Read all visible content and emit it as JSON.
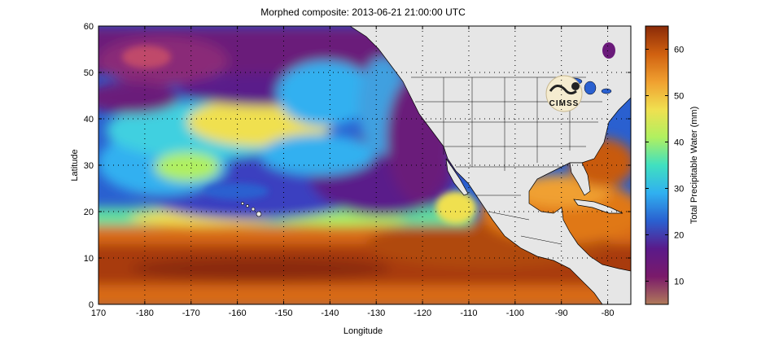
{
  "title": "Morphed composite: 2013-06-21 21:00:00 UTC",
  "map": {
    "xlabel": "Longitude",
    "ylabel": "Latitude",
    "x_ticks": [
      {
        "value": 170,
        "label": "170"
      },
      {
        "value": 180,
        "label": "-180"
      },
      {
        "value": 190,
        "label": "-170"
      },
      {
        "value": 200,
        "label": "-160"
      },
      {
        "value": 210,
        "label": "-150"
      },
      {
        "value": 220,
        "label": "-140"
      },
      {
        "value": 230,
        "label": "-130"
      },
      {
        "value": 240,
        "label": "-120"
      },
      {
        "value": 250,
        "label": "-110"
      },
      {
        "value": 260,
        "label": "-100"
      },
      {
        "value": 270,
        "label": "-90"
      },
      {
        "value": 280,
        "label": "-80"
      }
    ],
    "y_ticks": [
      {
        "value": 0,
        "label": "0"
      },
      {
        "value": 10,
        "label": "10"
      },
      {
        "value": 20,
        "label": "20"
      },
      {
        "value": 30,
        "label": "30"
      },
      {
        "value": 40,
        "label": "40"
      },
      {
        "value": 50,
        "label": "50"
      },
      {
        "value": 60,
        "label": "60"
      }
    ],
    "xlim": [
      170,
      285
    ],
    "ylim": [
      0,
      60
    ],
    "grid": "dotted",
    "logo_text": "CIMSS"
  },
  "colorbar": {
    "label": "Total Precipitable Water (mm)",
    "range": [
      5,
      65
    ],
    "ticks": [
      "10",
      "20",
      "30",
      "40",
      "50",
      "60"
    ],
    "tick_values": [
      10,
      20,
      30,
      40,
      50,
      60
    ],
    "colors": [
      "#b07a5a",
      "#7a1a6a",
      "#5a1a8a",
      "#2a60d0",
      "#30b0f0",
      "#40e0c0",
      "#b0f060",
      "#f0e050",
      "#f0a030",
      "#d06010",
      "#8a2a08"
    ]
  },
  "colors": {
    "land": "#e6e6e6",
    "ocean_dry": "#6a1a7a",
    "ocean_moist": "#c85a10"
  }
}
